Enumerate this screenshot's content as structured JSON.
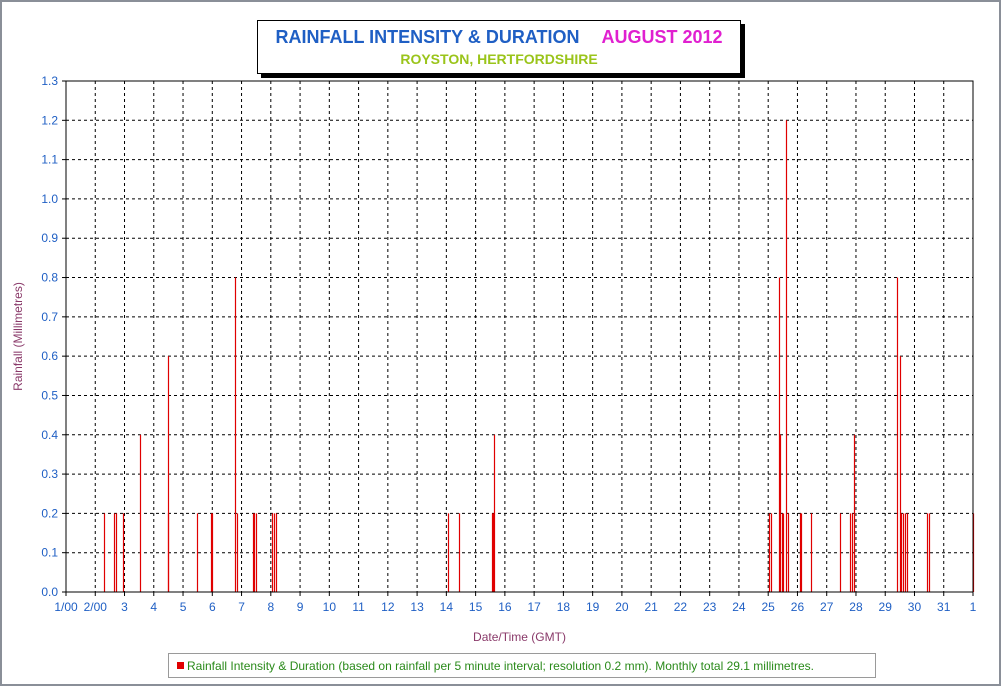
{
  "chart_data": {
    "type": "bar",
    "title": "RAINFALL INTENSITY & DURATION",
    "title_period": "AUGUST 2012",
    "subtitle": "ROYSTON, HERTFORDSHIRE",
    "xlabel": "Date/Time (GMT)",
    "ylabel": "Rainfall (Millimetres)",
    "ylim": [
      0,
      1.3
    ],
    "xlim_days": [
      1,
      32
    ],
    "grid": true,
    "legend_placement": "bottom",
    "y_ticks": [
      "0.0",
      "0.1",
      "0.2",
      "0.3",
      "0.4",
      "0.5",
      "0.6",
      "0.7",
      "0.8",
      "0.9",
      "1.0",
      "1.1",
      "1.2",
      "1.3"
    ],
    "x_tick_labels": [
      "1/00",
      "2/00",
      "3",
      "4",
      "5",
      "6",
      "7",
      "8",
      "9",
      "10",
      "11",
      "12",
      "13",
      "14",
      "15",
      "16",
      "17",
      "18",
      "19",
      "20",
      "21",
      "22",
      "23",
      "24",
      "25",
      "26",
      "27",
      "28",
      "29",
      "30",
      "31",
      "1"
    ],
    "series": [
      {
        "name": "Rainfall Intensity & Duration (based on rainfall per 5 minute interval; resolution 0.2 mm). Monthly total 29.1 millimetres.",
        "color": "#e00000",
        "points": [
          {
            "day": 2.3,
            "value": 0.2
          },
          {
            "day": 2.65,
            "value": 0.2
          },
          {
            "day": 2.72,
            "value": 0.2
          },
          {
            "day": 2.95,
            "value": 0.2
          },
          {
            "day": 3.52,
            "value": 0.4
          },
          {
            "day": 4.47,
            "value": 0.2
          },
          {
            "day": 4.5,
            "value": 0.6
          },
          {
            "day": 5.48,
            "value": 0.2
          },
          {
            "day": 5.95,
            "value": 0.2
          },
          {
            "day": 5.98,
            "value": 0.2
          },
          {
            "day": 6.78,
            "value": 0.8
          },
          {
            "day": 6.85,
            "value": 0.2
          },
          {
            "day": 7.38,
            "value": 0.2
          },
          {
            "day": 7.44,
            "value": 0.2
          },
          {
            "day": 7.5,
            "value": 0.2
          },
          {
            "day": 8.05,
            "value": 0.2
          },
          {
            "day": 8.12,
            "value": 0.2
          },
          {
            "day": 8.18,
            "value": 0.2
          },
          {
            "day": 14.05,
            "value": 0.2
          },
          {
            "day": 14.42,
            "value": 0.2
          },
          {
            "day": 15.55,
            "value": 0.2
          },
          {
            "day": 15.6,
            "value": 0.2
          },
          {
            "day": 15.64,
            "value": 0.4
          },
          {
            "day": 25.02,
            "value": 0.2
          },
          {
            "day": 25.1,
            "value": 0.2
          },
          {
            "day": 25.38,
            "value": 0.8
          },
          {
            "day": 25.42,
            "value": 0.4
          },
          {
            "day": 25.47,
            "value": 0.2
          },
          {
            "day": 25.52,
            "value": 0.2
          },
          {
            "day": 25.6,
            "value": 1.2
          },
          {
            "day": 25.66,
            "value": 0.2
          },
          {
            "day": 26.08,
            "value": 0.2
          },
          {
            "day": 26.13,
            "value": 0.2
          },
          {
            "day": 26.45,
            "value": 0.2
          },
          {
            "day": 27.45,
            "value": 0.2
          },
          {
            "day": 27.8,
            "value": 0.2
          },
          {
            "day": 27.88,
            "value": 0.2
          },
          {
            "day": 27.94,
            "value": 0.4
          },
          {
            "day": 29.4,
            "value": 0.8
          },
          {
            "day": 29.5,
            "value": 0.6
          },
          {
            "day": 29.55,
            "value": 0.2
          },
          {
            "day": 29.62,
            "value": 0.2
          },
          {
            "day": 29.68,
            "value": 0.2
          },
          {
            "day": 29.75,
            "value": 0.2
          },
          {
            "day": 30.42,
            "value": 0.2
          },
          {
            "day": 30.5,
            "value": 0.2
          },
          {
            "day": 32.0,
            "value": 0.2
          }
        ]
      }
    ]
  }
}
